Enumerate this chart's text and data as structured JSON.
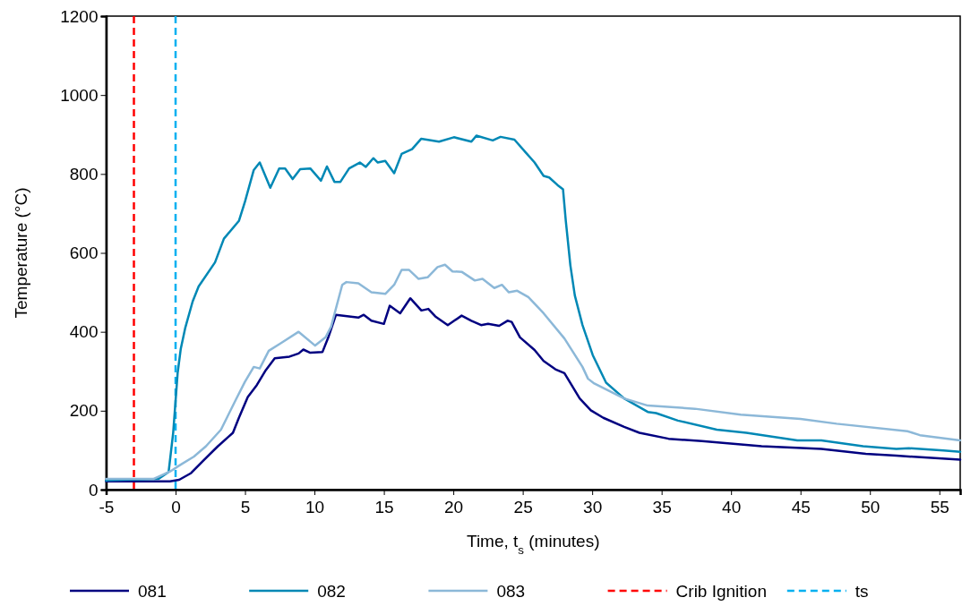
{
  "chart_data": {
    "type": "line",
    "xlabel": "Time, t$_{s}$ (minutes)",
    "ylabel": "Temperature (°C)",
    "xlim": [
      -5,
      56.5
    ],
    "xticks": [
      -5,
      0,
      5,
      10,
      15,
      20,
      25,
      30,
      35,
      40,
      45,
      50,
      55
    ],
    "ylim": [
      0,
      1200
    ],
    "yticks": [
      0,
      200,
      400,
      600,
      800,
      1000,
      1200
    ],
    "grid": false,
    "legend": "bottom",
    "line_style": "solid",
    "marker": "none",
    "series": [
      {
        "name": "081",
        "color": "#000080",
        "x": [
          -5,
          -0.4,
          0.26,
          1.12,
          1.98,
          3.05,
          4.13,
          4.56,
          5.2,
          5.85,
          6.5,
          7.14,
          8.2,
          8.86,
          9.2,
          9.7,
          10.58,
          11.0,
          11.55,
          13.16,
          13.55,
          14.1,
          15.0,
          15.42,
          16.17,
          16.9,
          17.7,
          18.2,
          18.7,
          19.6,
          20.6,
          21.3,
          22.0,
          22.5,
          23.3,
          23.9,
          24.2,
          24.8,
          25.85,
          26.5,
          27.35,
          28.0,
          29.1,
          29.9,
          30.8,
          32.3,
          33.4,
          35.5,
          37.9,
          42.2,
          46.5,
          49.7,
          51.9,
          56.5
        ],
        "values": [
          21,
          21,
          25,
          42,
          73,
          110,
          144,
          182,
          235,
          265,
          303,
          333,
          337,
          345,
          355,
          347,
          349,
          386,
          443,
          436,
          443,
          428,
          420,
          466,
          447,
          485,
          454,
          458,
          439,
          417,
          441,
          428,
          417,
          420,
          415,
          428,
          425,
          386,
          354,
          326,
          305,
          295,
          231,
          201,
          182,
          159,
          144,
          129,
          123,
          110,
          103,
          91,
          86,
          76
        ]
      },
      {
        "name": "082",
        "color": "#0088b5",
        "x": [
          -5,
          -1.25,
          -0.5,
          -0.17,
          0.15,
          0.37,
          0.69,
          1.23,
          1.66,
          2.84,
          3.48,
          4.56,
          5.0,
          5.63,
          6.06,
          6.82,
          7.46,
          7.89,
          8.43,
          8.97,
          9.7,
          10.47,
          10.9,
          11.44,
          11.87,
          12.5,
          13.27,
          13.7,
          14.24,
          14.56,
          15.1,
          15.74,
          16.28,
          17.03,
          17.68,
          18.97,
          20.04,
          21.3,
          21.66,
          22.84,
          23.4,
          24.4,
          25.2,
          25.85,
          26.5,
          26.9,
          27.5,
          27.9,
          28.1,
          28.43,
          28.75,
          29.3,
          30.04,
          31.0,
          32.3,
          34.0,
          34.6,
          36.17,
          38.97,
          41.1,
          44.77,
          46.5,
          49.5,
          51.9,
          52.8,
          55.3,
          56.5
        ],
        "values": [
          23,
          27,
          45,
          145,
          296,
          356,
          409,
          477,
          515,
          576,
          636,
          681,
          730,
          810,
          829,
          765,
          814,
          814,
          787,
          812,
          814,
          783,
          819,
          780,
          780,
          814,
          829,
          818,
          840,
          829,
          833,
          802,
          851,
          863,
          889,
          882,
          893,
          882,
          897,
          885,
          894,
          887,
          855,
          829,
          795,
          791,
          772,
          761,
          681,
          568,
          492,
          417,
          341,
          271,
          231,
          197,
          194,
          175,
          152,
          144,
          125,
          125,
          110,
          103,
          105,
          99,
          96
        ]
      },
      {
        "name": "083",
        "color": "#8cb8d8",
        "x": [
          -5,
          -1.6,
          -0.39,
          0.26,
          1.33,
          2.19,
          3.27,
          4.34,
          4.99,
          5.63,
          6.06,
          6.71,
          7.57,
          8.86,
          10.05,
          10.8,
          11.2,
          12.0,
          12.3,
          13.16,
          14.1,
          15.1,
          15.74,
          16.28,
          16.8,
          17.5,
          18.15,
          18.86,
          19.4,
          19.94,
          20.6,
          21.55,
          22.1,
          22.95,
          23.5,
          24.0,
          24.6,
          25.4,
          26.5,
          28.0,
          29.3,
          29.7,
          30.15,
          32.3,
          34.0,
          37.4,
          40.7,
          45.0,
          47.6,
          52.7,
          53.6,
          56.5
        ],
        "values": [
          27,
          27,
          46,
          61,
          84,
          110,
          152,
          228,
          273,
          311,
          307,
          352,
          371,
          400,
          365,
          386,
          413,
          519,
          526,
          523,
          500,
          496,
          519,
          557,
          557,
          534,
          538,
          564,
          570,
          553,
          552,
          530,
          534,
          511,
          519,
          500,
          504,
          488,
          447,
          383,
          311,
          281,
          269,
          231,
          213,
          205,
          190,
          179,
          167,
          148,
          138,
          125
        ]
      }
    ],
    "ref_lines": [
      {
        "axis": "x",
        "value": -3,
        "label": "Crib Ignition",
        "color": "#ff0000",
        "line_style": "dashed"
      },
      {
        "axis": "x",
        "value": 0,
        "label": "ts",
        "color": "#00b0f0",
        "line_style": "dashed"
      }
    ]
  }
}
